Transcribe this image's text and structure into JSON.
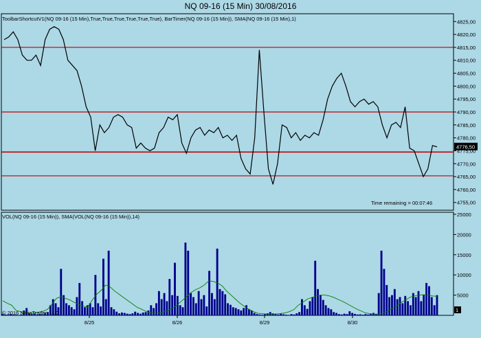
{
  "window": {
    "title": "NQ 09-16 (15 Min)  30/08/2016"
  },
  "price_panel": {
    "indicator_label": "ToolbarShortcutV1(NQ 09-16 (15 Min),True,True,True,True,True,True), BarTimer(NQ 09-16 (15 Min)), SMA(NQ 09-16 (15 Min),1)",
    "time_remaining": "Time remaining = 00:07:46",
    "current_price_tag": "4776,50"
  },
  "volume_panel": {
    "indicator_label": "VOL(NQ 09-16 (15 Min)), SMA(VOL(NQ 09-16 (15 Min)),14)",
    "copyright": "© 2016 NinjaTrader, LLC",
    "last_volume_tag": "1"
  },
  "colors": {
    "background": "#add8e6",
    "price_line": "#000000",
    "level_line": "#c00000",
    "volume_bar": "#00008b",
    "sma_line": "#008000"
  },
  "chart_data": [
    {
      "type": "line",
      "title": "NQ 09-16 (15 Min)  30/08/2016",
      "x_ticks": [
        "8/25",
        "8/26",
        "8/29",
        "8/30"
      ],
      "y_ticks": [
        "4825,00",
        "4820,00",
        "4815,00",
        "4810,00",
        "4805,00",
        "4800,00",
        "4795,00",
        "4790,00",
        "4785,00",
        "4780,00",
        "4775,00",
        "4770,00",
        "4765,00",
        "4760,00",
        "4755,00"
      ],
      "ylim": [
        4752,
        4828
      ],
      "horizontal_levels": [
        4815,
        4790,
        4774.5,
        4765.3
      ],
      "series": [
        {
          "values": [
            4818,
            4819,
            4821,
            4818,
            4812,
            4810,
            4810,
            4812,
            4808,
            4818,
            4822,
            4823,
            4822,
            4818,
            4810,
            4808,
            4806,
            4800,
            4792,
            4788,
            4775,
            4785,
            4782,
            4784,
            4788,
            4789,
            4788,
            4785,
            4784,
            4776,
            4778,
            4776,
            4775,
            4776,
            4782,
            4784,
            4788,
            4787,
            4789,
            4778,
            4774,
            4780,
            4783,
            4784,
            4781,
            4783,
            4782,
            4784,
            4780,
            4781,
            4779,
            4781,
            4772,
            4768,
            4766,
            4780,
            4814,
            4790,
            4768,
            4762,
            4770,
            4785,
            4784,
            4780,
            4782,
            4779,
            4781,
            4780,
            4782,
            4781,
            4787,
            4795,
            4800,
            4803,
            4805,
            4800,
            4794,
            4792,
            4794,
            4795,
            4793,
            4794,
            4792,
            4785,
            4780,
            4785,
            4786,
            4784,
            4792,
            4776,
            4775,
            4770,
            4765,
            4768,
            4777,
            4776.5
          ]
        }
      ]
    },
    {
      "type": "bar",
      "title": "VOL(NQ 09-16 (15 Min)), SMA(VOL(NQ 09-16 (15 Min)),14)",
      "x_ticks": [
        "8/25",
        "8/26",
        "8/29",
        "8/30"
      ],
      "y_ticks": [
        "25000",
        "20000",
        "15000",
        "10000",
        "5000"
      ],
      "ylim": [
        0,
        25500
      ],
      "series": [
        {
          "name": "VOL",
          "values": [
            300,
            200,
            150,
            300,
            200,
            150,
            100,
            200,
            1200,
            1800,
            500,
            300,
            400,
            200,
            300,
            200,
            500,
            800,
            2500,
            4000,
            3000,
            2000,
            11500,
            5000,
            3000,
            2500,
            2000,
            1500,
            4500,
            8000,
            3500,
            2000,
            2500,
            3000,
            2000,
            10000,
            3000,
            2200,
            14000,
            4000,
            16000,
            2000,
            1500,
            900,
            500,
            700,
            600,
            400,
            300,
            500,
            900,
            600,
            400,
            700,
            800,
            1200,
            2500,
            1800,
            3000,
            6000,
            4000,
            5500,
            3500,
            9000,
            5000,
            13000,
            4800,
            2500,
            2000,
            18000,
            16000,
            5500,
            4500,
            3000,
            6000,
            4000,
            5000,
            2200,
            11000,
            5500,
            4000,
            16500,
            6500,
            6000,
            5200,
            3000,
            2600,
            2000,
            1800,
            1500,
            1200,
            1800,
            2500,
            1500,
            1200,
            600,
            300,
            200,
            150,
            300,
            500,
            800,
            500,
            300,
            200,
            400,
            250,
            150,
            100,
            300,
            200,
            500,
            800,
            4000,
            2500,
            1600,
            3500,
            4500,
            13500,
            6500,
            5000,
            3800,
            2500,
            1800,
            1500,
            800,
            600,
            300,
            200,
            400,
            300,
            1000,
            600,
            350,
            200,
            250,
            150,
            300,
            200,
            400,
            600,
            300,
            5500,
            16000,
            11500,
            7500,
            4500,
            5000,
            6500,
            4000,
            4500,
            3000,
            4800,
            3500,
            2500,
            5500,
            4500,
            6000,
            3500,
            5000,
            8000,
            7200,
            4500,
            2500,
            5000
          ]
        },
        {
          "name": "SMA(VOL,14)",
          "values": [
            3600,
            3000,
            2500,
            1200,
            900,
            700,
            500,
            600,
            800,
            1000,
            1500,
            2800,
            4200,
            4600,
            4200,
            3800,
            3200,
            2700,
            2300,
            2000,
            3800,
            5200,
            6200,
            7500,
            7000,
            6000,
            5200,
            4400,
            3600,
            2800,
            2000,
            1500,
            1000,
            600,
            500,
            600,
            900,
            1200,
            1800,
            2600,
            3600,
            4500,
            5600,
            6300,
            6800,
            7500,
            8500,
            8400,
            8000,
            7300,
            6000,
            5000,
            4000,
            3000,
            2200,
            1500,
            900,
            500,
            400,
            300,
            300,
            350,
            450,
            600,
            900,
            1400,
            2500,
            3200,
            4000,
            4400,
            4800,
            5000,
            5000,
            4800,
            4400,
            3900,
            3400,
            2800,
            2200,
            1600,
            1100,
            600,
            400,
            300,
            300,
            500,
            1000,
            1700,
            2400,
            3200,
            3800,
            4500,
            4800,
            5000,
            5100,
            5000,
            4800,
            4700
          ]
        }
      ]
    }
  ]
}
